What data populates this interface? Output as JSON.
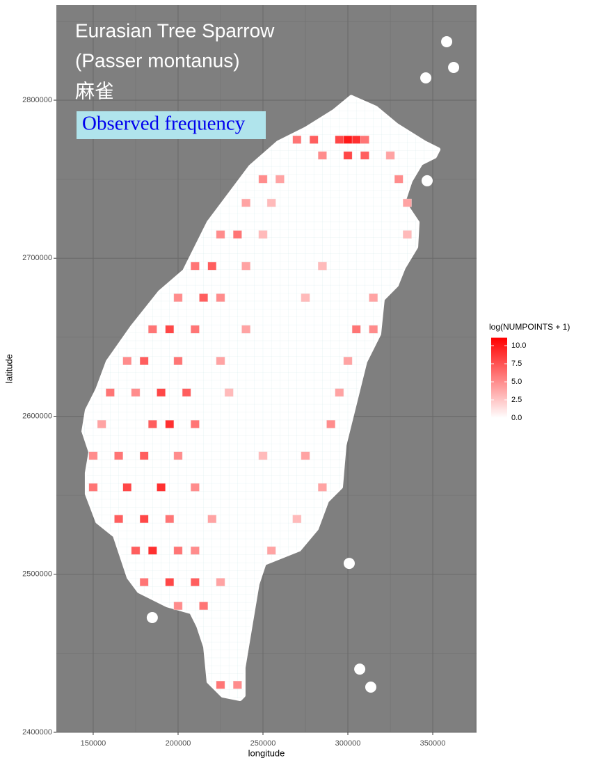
{
  "chart_data": {
    "type": "heatmap",
    "title": "Eurasian Tree Sparrow",
    "subtitle": "(Passer montanus)",
    "local_name": "麻雀",
    "annotation": "Observed frequency",
    "x_label": "longitude",
    "y_label": "latitude",
    "legend_title": "log(NUMPOINTS + 1)",
    "xlim": [
      128300,
      375800
    ],
    "ylim": [
      2400000,
      2860300
    ],
    "xticks": [
      150000,
      200000,
      250000,
      300000,
      350000
    ],
    "yticks": [
      2400000,
      2500000,
      2600000,
      2700000,
      2800000
    ],
    "grid": true,
    "cell_size": 5000,
    "color_low": "#ffffff",
    "color_high": "#ff0000",
    "colorbar_lim": [
      0,
      11.1
    ],
    "colorbar_ticks": [
      {
        "value": 0,
        "label": "0.0"
      },
      2.5,
      {
        "value": 5,
        "label": "5.0"
      },
      7.5,
      {
        "value": 10,
        "label": "10.0"
      }
    ],
    "outline": [
      [
        302000,
        2802000
      ],
      [
        316400,
        2795200
      ],
      [
        328700,
        2784200
      ],
      [
        345100,
        2773200
      ],
      [
        353300,
        2768800
      ],
      [
        351200,
        2764400
      ],
      [
        343000,
        2760000
      ],
      [
        336900,
        2749000
      ],
      [
        332800,
        2735800
      ],
      [
        341000,
        2722600
      ],
      [
        340200,
        2707200
      ],
      [
        332800,
        2694000
      ],
      [
        328700,
        2683000
      ],
      [
        320500,
        2674100
      ],
      [
        318400,
        2652100
      ],
      [
        310200,
        2634500
      ],
      [
        304100,
        2608100
      ],
      [
        298000,
        2581700
      ],
      [
        295900,
        2555300
      ],
      [
        287700,
        2546500
      ],
      [
        281600,
        2528900
      ],
      [
        271300,
        2515700
      ],
      [
        250800,
        2506900
      ],
      [
        246700,
        2493700
      ],
      [
        242600,
        2467300
      ],
      [
        238500,
        2440900
      ],
      [
        238500,
        2423300
      ],
      [
        236500,
        2421100
      ],
      [
        226200,
        2423300
      ],
      [
        218000,
        2432100
      ],
      [
        216000,
        2454100
      ],
      [
        211900,
        2467300
      ],
      [
        207800,
        2476100
      ],
      [
        193400,
        2480500
      ],
      [
        177000,
        2489300
      ],
      [
        170900,
        2498100
      ],
      [
        166800,
        2511300
      ],
      [
        162700,
        2524500
      ],
      [
        152500,
        2533300
      ],
      [
        146300,
        2550900
      ],
      [
        146300,
        2564100
      ],
      [
        148400,
        2577300
      ],
      [
        144300,
        2590500
      ],
      [
        146300,
        2603700
      ],
      [
        152500,
        2616900
      ],
      [
        158600,
        2634500
      ],
      [
        173000,
        2656500
      ],
      [
        189300,
        2678500
      ],
      [
        203700,
        2691800
      ],
      [
        218000,
        2722600
      ],
      [
        230300,
        2740200
      ],
      [
        242600,
        2757800
      ],
      [
        259000,
        2773200
      ],
      [
        275400,
        2782000
      ],
      [
        291800,
        2793000
      ]
    ],
    "islands": [
      [
        358200,
        2837000
      ],
      [
        362300,
        2820700
      ],
      [
        345900,
        2814100
      ],
      [
        346700,
        2749000
      ],
      [
        184800,
        2472600
      ],
      [
        300800,
        2506900
      ],
      [
        307000,
        2440000
      ],
      [
        313500,
        2428600
      ]
    ],
    "cells": [
      [
        270000,
        2775000,
        6
      ],
      [
        280000,
        2775000,
        7
      ],
      [
        295000,
        2775000,
        8
      ],
      [
        300000,
        2775000,
        10
      ],
      [
        305000,
        2775000,
        9
      ],
      [
        310000,
        2775000,
        6
      ],
      [
        285000,
        2765000,
        5
      ],
      [
        300000,
        2765000,
        8
      ],
      [
        310000,
        2765000,
        7
      ],
      [
        325000,
        2765000,
        4
      ],
      [
        250000,
        2750000,
        5
      ],
      [
        260000,
        2750000,
        4
      ],
      [
        330000,
        2750000,
        5
      ],
      [
        240000,
        2735000,
        4
      ],
      [
        255000,
        2735000,
        3
      ],
      [
        335000,
        2735000,
        4
      ],
      [
        225000,
        2715000,
        5
      ],
      [
        235000,
        2715000,
        6
      ],
      [
        250000,
        2715000,
        3
      ],
      [
        335000,
        2715000,
        3
      ],
      [
        210000,
        2695000,
        6
      ],
      [
        220000,
        2695000,
        7
      ],
      [
        240000,
        2695000,
        4
      ],
      [
        285000,
        2695000,
        3
      ],
      [
        200000,
        2675000,
        5
      ],
      [
        215000,
        2675000,
        7
      ],
      [
        225000,
        2675000,
        5
      ],
      [
        275000,
        2675000,
        3
      ],
      [
        315000,
        2675000,
        4
      ],
      [
        185000,
        2655000,
        6
      ],
      [
        195000,
        2655000,
        8
      ],
      [
        210000,
        2655000,
        6
      ],
      [
        240000,
        2655000,
        4
      ],
      [
        305000,
        2655000,
        6
      ],
      [
        315000,
        2655000,
        5
      ],
      [
        170000,
        2635000,
        5
      ],
      [
        180000,
        2635000,
        7
      ],
      [
        200000,
        2635000,
        6
      ],
      [
        225000,
        2635000,
        4
      ],
      [
        300000,
        2635000,
        4
      ],
      [
        160000,
        2615000,
        6
      ],
      [
        175000,
        2615000,
        5
      ],
      [
        190000,
        2615000,
        8
      ],
      [
        205000,
        2615000,
        7
      ],
      [
        230000,
        2615000,
        3
      ],
      [
        295000,
        2615000,
        4
      ],
      [
        155000,
        2595000,
        4
      ],
      [
        185000,
        2595000,
        7
      ],
      [
        195000,
        2595000,
        9
      ],
      [
        210000,
        2595000,
        6
      ],
      [
        290000,
        2595000,
        5
      ],
      [
        150000,
        2575000,
        5
      ],
      [
        165000,
        2575000,
        6
      ],
      [
        180000,
        2575000,
        7
      ],
      [
        200000,
        2575000,
        5
      ],
      [
        250000,
        2575000,
        3
      ],
      [
        275000,
        2575000,
        4
      ],
      [
        150000,
        2555000,
        6
      ],
      [
        170000,
        2555000,
        8
      ],
      [
        190000,
        2555000,
        9
      ],
      [
        210000,
        2555000,
        5
      ],
      [
        285000,
        2555000,
        4
      ],
      [
        165000,
        2535000,
        7
      ],
      [
        180000,
        2535000,
        8
      ],
      [
        195000,
        2535000,
        6
      ],
      [
        220000,
        2535000,
        4
      ],
      [
        270000,
        2535000,
        3
      ],
      [
        175000,
        2515000,
        7
      ],
      [
        185000,
        2515000,
        9
      ],
      [
        200000,
        2515000,
        6
      ],
      [
        210000,
        2515000,
        5
      ],
      [
        255000,
        2515000,
        4
      ],
      [
        180000,
        2495000,
        6
      ],
      [
        195000,
        2495000,
        8
      ],
      [
        210000,
        2495000,
        7
      ],
      [
        225000,
        2495000,
        4
      ],
      [
        200000,
        2480000,
        5
      ],
      [
        215000,
        2480000,
        6
      ],
      [
        225000,
        2430000,
        6
      ],
      [
        235000,
        2430000,
        5
      ]
    ]
  }
}
